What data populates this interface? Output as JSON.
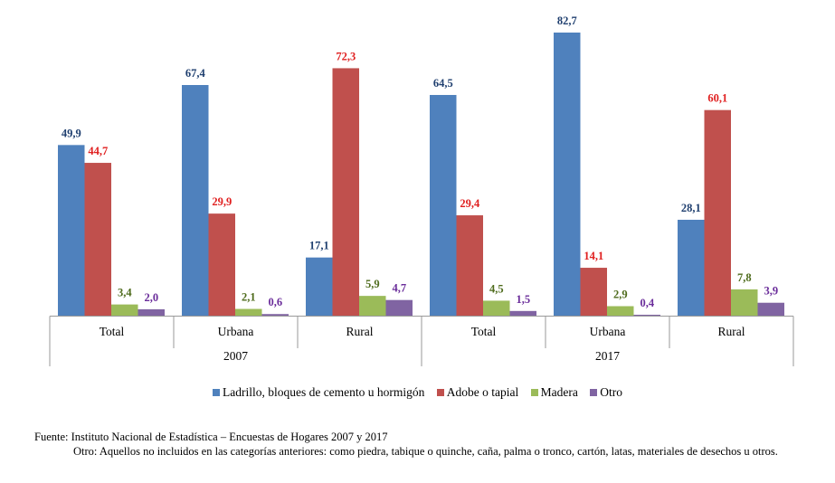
{
  "chart_data": {
    "type": "bar",
    "groups": [
      {
        "year": "2007",
        "categories": [
          "Total",
          "Urbana",
          "Rural"
        ]
      },
      {
        "year": "2017",
        "categories": [
          "Total",
          "Urbana",
          "Rural"
        ]
      }
    ],
    "series": [
      {
        "name": "Ladrillo, bloques de cemento u hormigón",
        "color": "#4f81bd",
        "label_color": "#1f3f6f",
        "values": [
          49.9,
          67.4,
          17.1,
          64.5,
          82.7,
          28.1
        ],
        "labels": [
          "49,9",
          "67,4",
          "17,1",
          "64,5",
          "82,7",
          "28,1"
        ]
      },
      {
        "name": "Adobe o tapial",
        "color": "#c0504d",
        "label_color": "#e02020",
        "values": [
          44.7,
          29.9,
          72.3,
          29.4,
          14.1,
          60.1
        ],
        "labels": [
          "44,7",
          "29,9",
          "72,3",
          "29,4",
          "14,1",
          "60,1"
        ]
      },
      {
        "name": "Madera",
        "color": "#9bbb59",
        "label_color": "#4e6b1c",
        "values": [
          3.4,
          2.1,
          5.9,
          4.5,
          2.9,
          7.8
        ],
        "labels": [
          "3,4",
          "2,1",
          "5,9",
          "4,5",
          "2,9",
          "7,8"
        ]
      },
      {
        "name": "Otro",
        "color": "#8064a2",
        "label_color": "#6a2c9a",
        "values": [
          2.0,
          0.6,
          4.7,
          1.5,
          0.4,
          3.9
        ],
        "labels": [
          "2,0",
          "0,6",
          "4,7",
          "1,5",
          "0,4",
          "3,9"
        ]
      }
    ],
    "ylim": [
      0,
      82.7
    ],
    "grid": false,
    "legend_position": "bottom"
  },
  "notes": {
    "source": "Fuente: Instituto Nacional de Estadística – Encuestas de Hogares 2007 y 2017",
    "other": "Otro: Aquellos no incluidos en las categorías anteriores: como piedra, tabique o quinche, caña, palma o tronco, cartón, latas, materiales de desechos u otros."
  }
}
